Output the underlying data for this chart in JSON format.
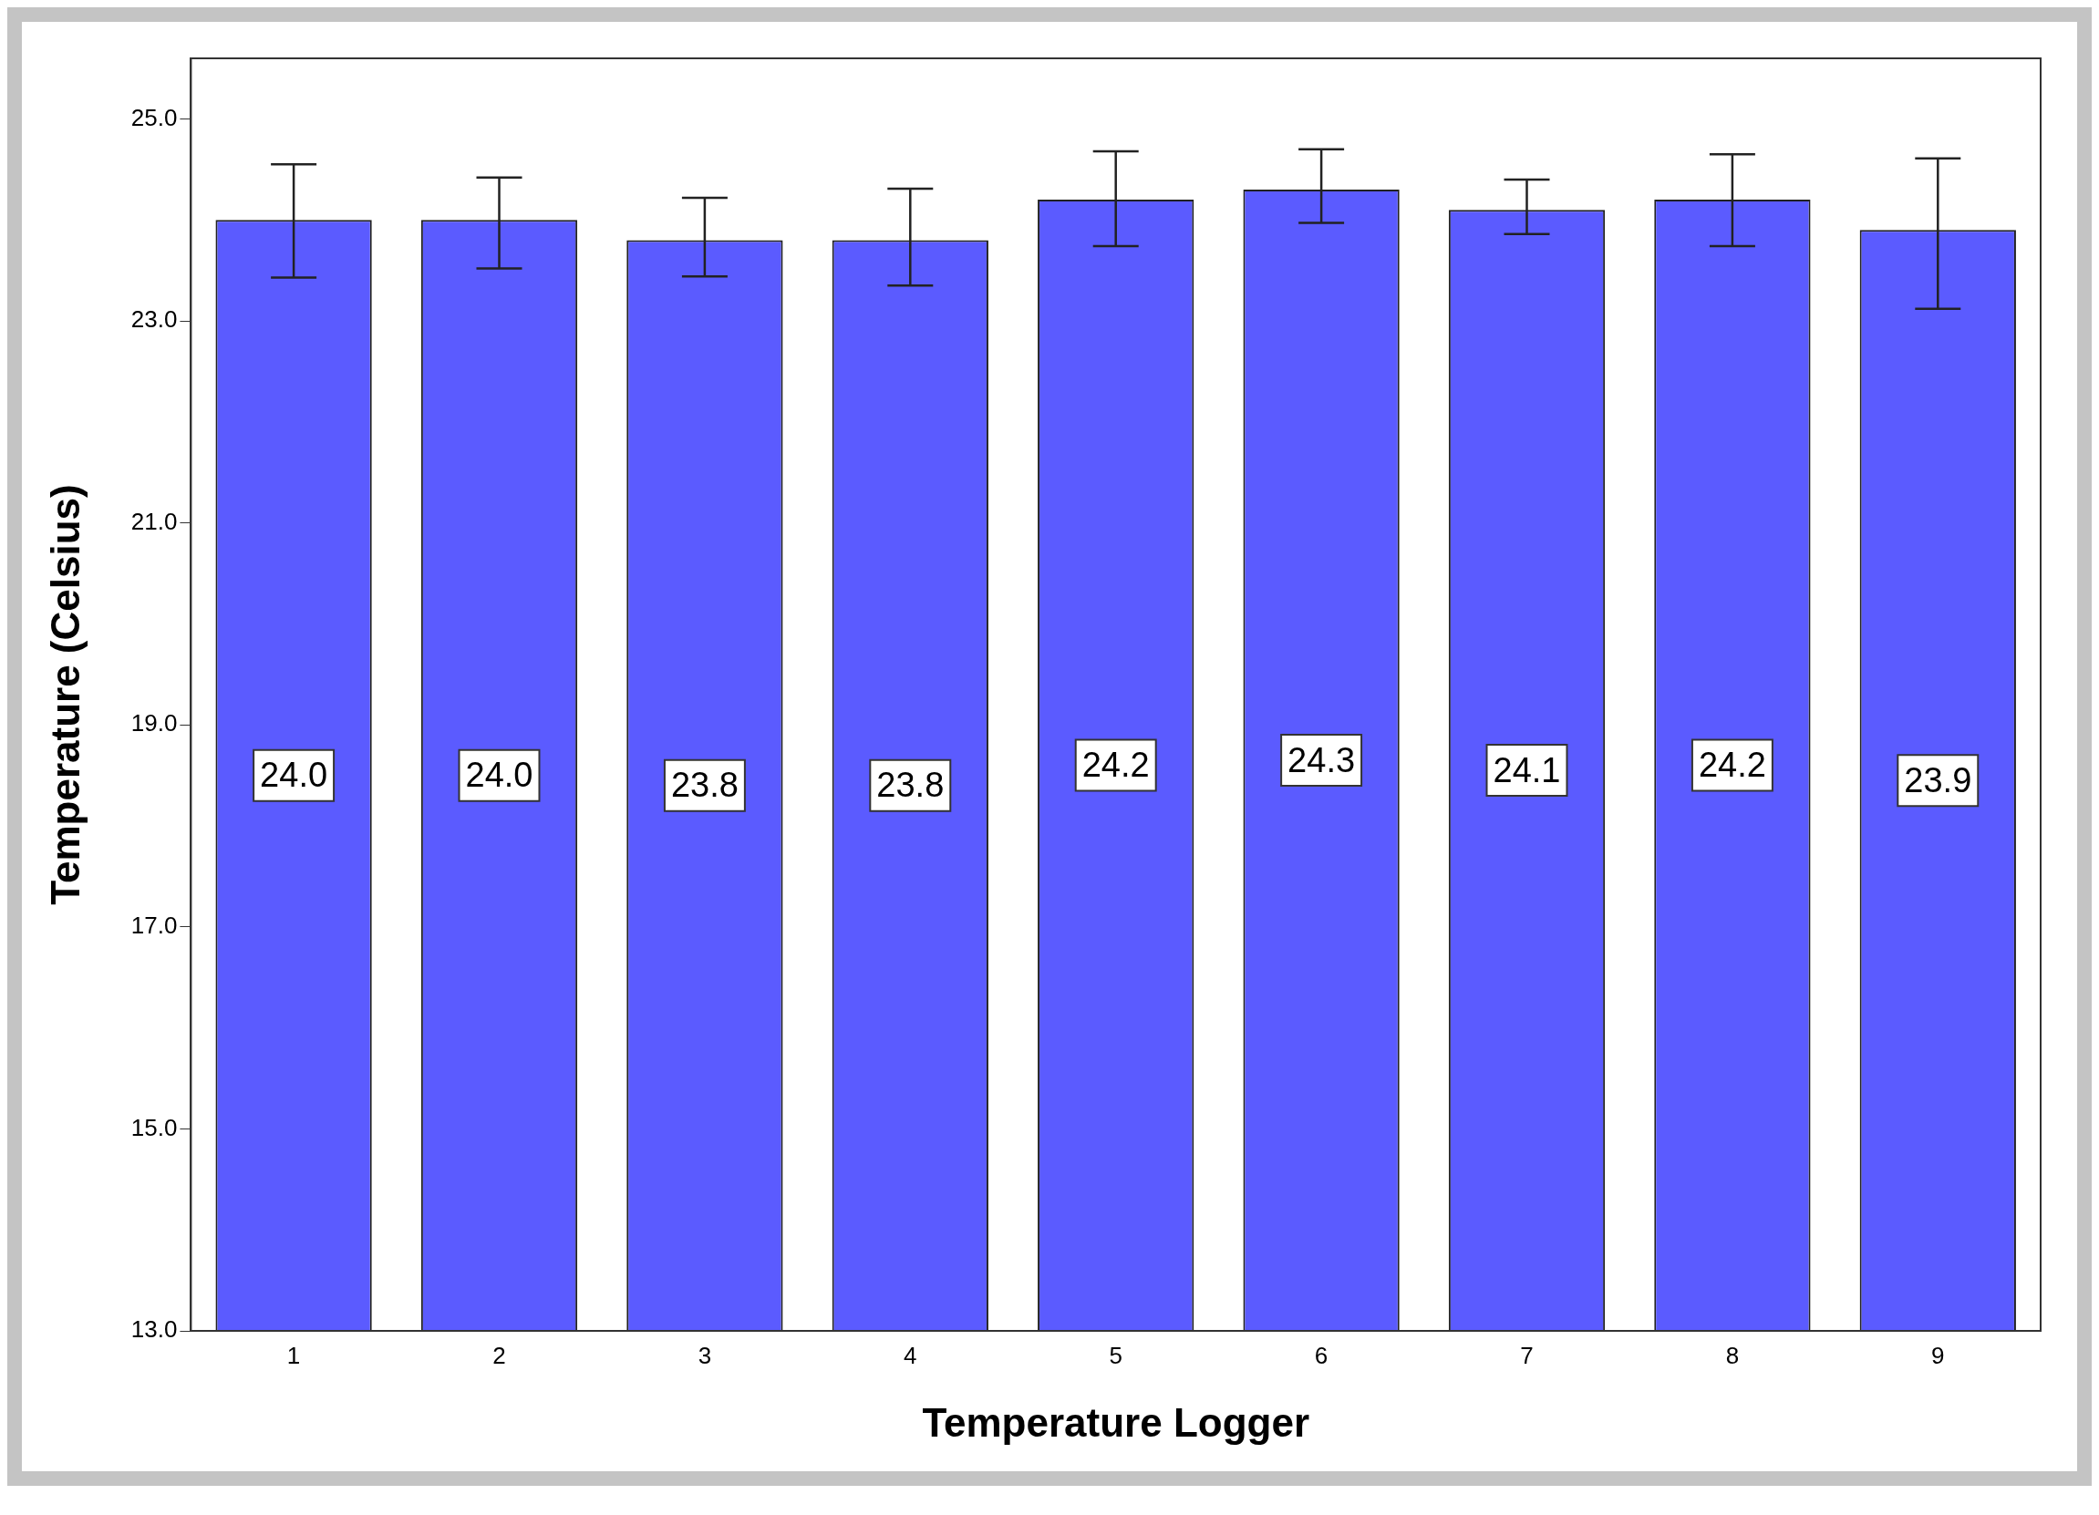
{
  "chart_data": {
    "type": "bar",
    "xlabel": "Temperature Logger",
    "ylabel": "Temperature (Celsius)",
    "categories": [
      "1",
      "2",
      "3",
      "4",
      "5",
      "6",
      "7",
      "8",
      "9"
    ],
    "values": [
      24.0,
      24.0,
      23.8,
      23.8,
      24.2,
      24.3,
      24.1,
      24.2,
      23.9
    ],
    "value_labels": [
      "24.0",
      "24.0",
      "23.8",
      "23.8",
      "24.2",
      "24.3",
      "24.1",
      "24.2",
      "23.9"
    ],
    "errors": [
      [
        23.43,
        24.55
      ],
      [
        23.52,
        24.42
      ],
      [
        23.44,
        24.22
      ],
      [
        23.35,
        24.31
      ],
      [
        23.74,
        24.68
      ],
      [
        23.97,
        24.7
      ],
      [
        23.86,
        24.4
      ],
      [
        23.74,
        24.65
      ],
      [
        23.12,
        24.61
      ]
    ],
    "color": "#5b5bff",
    "grid": false,
    "legend": false,
    "ylim": [
      13,
      25.6
    ],
    "yticks": [
      {
        "value": 13,
        "label": "13.0"
      },
      {
        "value": 15,
        "label": "15.0"
      },
      {
        "value": 17,
        "label": "17.0"
      },
      {
        "value": 19,
        "label": "19.0"
      },
      {
        "value": 21,
        "label": "21.0"
      },
      {
        "value": 23,
        "label": "23.0"
      },
      {
        "value": 25,
        "label": "25.0"
      }
    ]
  }
}
